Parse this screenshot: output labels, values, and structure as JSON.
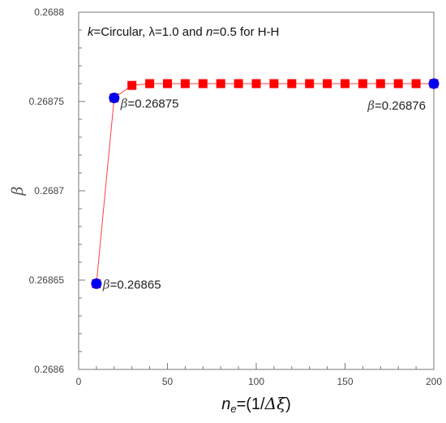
{
  "chart_data": {
    "type": "line",
    "title": {
      "parts": [
        {
          "text": "k",
          "italic": true
        },
        {
          "text": "=Circular, "
        },
        {
          "text": "λ",
          "symbol": true
        },
        {
          "text": "=1.0 and "
        },
        {
          "text": "n",
          "italic": true
        },
        {
          "text": "=0.5 for H-H"
        }
      ]
    },
    "xlabel": {
      "parts": [
        {
          "text": "n",
          "italic": true
        },
        {
          "text": "e",
          "italic": true,
          "sub": true
        },
        {
          "text": "=(1/"
        },
        {
          "text": "Δξ",
          "symbol": true
        },
        {
          "text": ")"
        }
      ]
    },
    "ylabel": "β",
    "xlim": [
      0,
      200
    ],
    "ylim": [
      0.2686,
      0.2688
    ],
    "x_ticks": [
      0,
      50,
      100,
      150,
      200
    ],
    "x_tick_labels": [
      "0",
      "50",
      "100",
      "150",
      "200"
    ],
    "y_ticks": [
      0.2686,
      0.26865,
      0.2687,
      0.26875,
      0.2688
    ],
    "y_tick_labels": [
      "0.2686",
      "0.26865",
      "0.2687",
      "0.26875",
      "0.2688"
    ],
    "grid": false,
    "series": [
      {
        "marker": "square",
        "color": "#ff0000",
        "line_color": "#ff4040",
        "x": [
          10,
          20,
          30,
          40,
          50,
          60,
          70,
          80,
          90,
          100,
          110,
          120,
          130,
          140,
          150,
          160,
          170,
          180,
          190,
          200
        ],
        "y": [
          0.268648,
          0.268752,
          0.268759,
          0.26876,
          0.26876,
          0.26876,
          0.26876,
          0.26876,
          0.26876,
          0.26876,
          0.26876,
          0.26876,
          0.26876,
          0.26876,
          0.26876,
          0.26876,
          0.26876,
          0.26876,
          0.26876,
          0.26876
        ]
      }
    ],
    "highlight_points": {
      "marker": "circle",
      "color": "#0000ee",
      "points": [
        {
          "x": 10,
          "y": 0.268648
        },
        {
          "x": 20,
          "y": 0.268752
        },
        {
          "x": 200,
          "y": 0.26876
        }
      ]
    },
    "annotations": [
      {
        "symbol": "β",
        "text": "=0.26865",
        "x": 10,
        "y": 0.268648
      },
      {
        "symbol": "β",
        "text": "=0.26875",
        "x": 20,
        "y": 0.268752
      },
      {
        "symbol": "β",
        "text": "=0.26876",
        "x": 200,
        "y": 0.26876
      }
    ]
  }
}
